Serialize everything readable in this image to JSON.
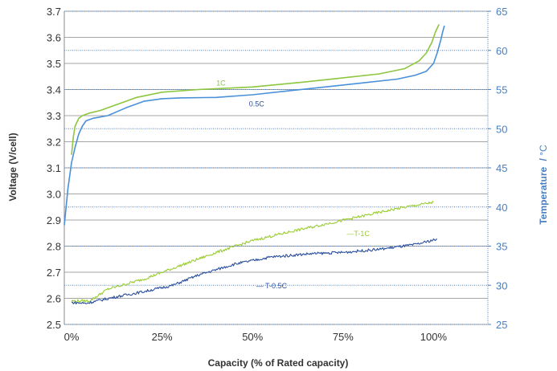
{
  "chart_data": {
    "type": "line",
    "xlabel": "Capacity  (% of Rated capacity)",
    "ylabel": "Voltage  (V/cell)",
    "y2label": "Temperature",
    "y2unit": "°C",
    "xlim": [
      -2,
      115
    ],
    "ylim": [
      2.5,
      3.7
    ],
    "y2lim": [
      25,
      65
    ],
    "x_ticks": [
      0,
      25,
      50,
      75,
      100
    ],
    "x_tick_labels": [
      "0%",
      "25%",
      "50%",
      "75%",
      "100%"
    ],
    "y_ticks": [
      2.5,
      2.6,
      2.7,
      2.8,
      2.9,
      3.0,
      3.1,
      3.2,
      3.3,
      3.4,
      3.5,
      3.6,
      3.7
    ],
    "y_tick_labels": [
      "2.5",
      "2.6",
      "2.7",
      "2.8",
      "2.9",
      "3.0",
      "3.1",
      "3.2",
      "3.3",
      "3.4",
      "3.5",
      "3.6",
      "3.7"
    ],
    "y2_ticks": [
      25,
      30,
      35,
      40,
      45,
      50,
      55,
      60,
      65
    ],
    "y2_tick_labels": [
      "25",
      "30",
      "35",
      "40",
      "45",
      "50",
      "55",
      "60",
      "65"
    ],
    "grid": "horizontal",
    "series": [
      {
        "name": "1C",
        "axis": "left",
        "color": "#8dc63f",
        "x": [
          0,
          0.5,
          1,
          2,
          3,
          5,
          8,
          12,
          18,
          25,
          35,
          50,
          65,
          75,
          85,
          92,
          96,
          98,
          99.5,
          100.5,
          101.5
        ],
        "y": [
          3.15,
          3.22,
          3.26,
          3.29,
          3.3,
          3.31,
          3.32,
          3.34,
          3.37,
          3.39,
          3.4,
          3.41,
          3.43,
          3.445,
          3.46,
          3.48,
          3.51,
          3.54,
          3.58,
          3.62,
          3.65
        ]
      },
      {
        "name": "0.5C",
        "axis": "left",
        "color": "#4a90d9",
        "x": [
          -2,
          -1,
          0,
          1,
          2,
          3,
          4,
          6,
          10,
          15,
          20,
          25,
          30,
          40,
          50,
          60,
          70,
          80,
          90,
          95,
          98,
          100,
          101,
          102,
          102.5,
          103
        ],
        "y": [
          2.88,
          3.02,
          3.12,
          3.18,
          3.23,
          3.26,
          3.28,
          3.29,
          3.3,
          3.33,
          3.355,
          3.365,
          3.368,
          3.37,
          3.38,
          3.395,
          3.41,
          3.425,
          3.44,
          3.455,
          3.47,
          3.5,
          3.54,
          3.59,
          3.62,
          3.645
        ]
      },
      {
        "name": "T-1C",
        "axis": "right",
        "color": "#9acd32",
        "x": [
          0,
          5,
          10,
          20,
          30,
          40,
          50,
          60,
          70,
          80,
          90,
          100
        ],
        "y": [
          28,
          28,
          29.5,
          30.8,
          32.5,
          34.2,
          35.7,
          36.8,
          37.8,
          38.8,
          39.8,
          40.6
        ]
      },
      {
        "name": "T-0.5C",
        "axis": "right",
        "color": "#2b4f9e",
        "x": [
          0,
          4,
          8,
          12,
          20,
          28,
          35,
          45,
          55,
          65,
          75,
          85,
          95,
          101
        ],
        "y": [
          27.8,
          27.7,
          28.1,
          28.5,
          29.2,
          30,
          31.3,
          32.7,
          33.6,
          34,
          34.2,
          34.6,
          35.2,
          35.9
        ]
      }
    ],
    "annotations": [
      {
        "text": "1C",
        "series": "1C"
      },
      {
        "text": "0.5C",
        "series": "0.5C"
      },
      {
        "text": "—T-1C",
        "series": "T-1C"
      },
      {
        "text": "— T-0.5C",
        "series": "T-0.5C"
      }
    ]
  }
}
